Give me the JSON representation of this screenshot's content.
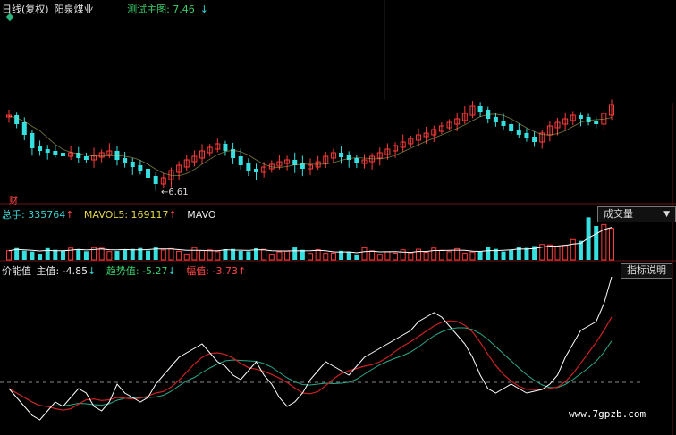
{
  "header": {
    "period": "日线(复权)",
    "stock_name": "阳泉煤业",
    "test_main_label": "测试主图: 7.46",
    "test_main_arrow": "↓"
  },
  "candles": {
    "low_annotation": "←6.61",
    "fin_marker": "财",
    "up_color": "#ff3b3b",
    "down_color": "#37e0e0"
  },
  "volume": {
    "total_label": "总手: 335764",
    "total_arrow": "↑",
    "mavol5_label": "MAVOL5: 169117",
    "mavol5_arrow": "↑",
    "mavo_label": "MAVO",
    "dropdown_label": "成交量",
    "dropdown_icon": "▼"
  },
  "indicator": {
    "name": "价能值",
    "main_label": "主值: -4.85",
    "main_arrow": "↓",
    "trend_label": "趋势值: -5.27",
    "trend_arrow": "↓",
    "amp_label": "幅值: -3.73",
    "amp_arrow": "↑",
    "help_button": "指标说明"
  },
  "watermark": "www.7gpzb.com",
  "colors": {
    "main_line": "#ffffff",
    "trend_line": "#2aa88a",
    "amp_line": "#cc2222",
    "grid_red": "#6a1414",
    "volume_ma": "#ffffff"
  }
}
